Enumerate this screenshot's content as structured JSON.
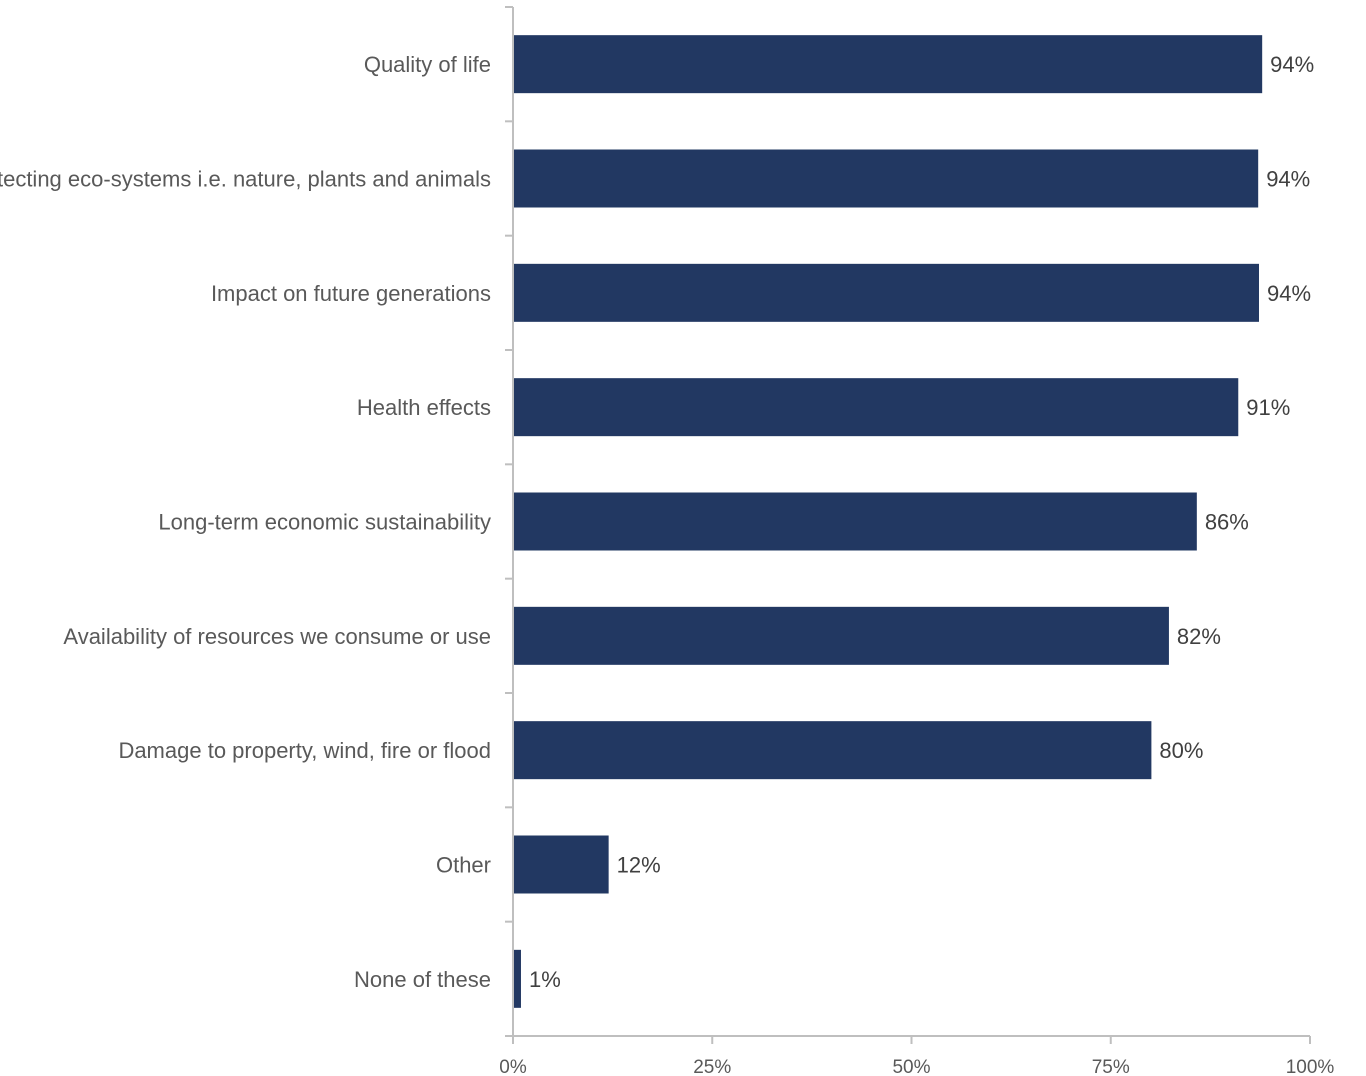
{
  "chart_data": {
    "type": "bar",
    "orientation": "horizontal",
    "title": "",
    "xlabel": "",
    "ylabel": "",
    "categories": [
      "Quality of life",
      "Protecting eco-systems i.e. nature, plants and animals",
      "Impact on future generations",
      "Health effects",
      "Long-term economic sustainability",
      "Availability of resources we consume or use",
      "Damage to property, wind, fire or flood",
      "Other",
      "None of these"
    ],
    "values": [
      94,
      93.5,
      93.6,
      91,
      85.8,
      82.3,
      80.1,
      12,
      1
    ],
    "value_labels": [
      "94%",
      "94%",
      "94%",
      "91%",
      "86%",
      "82%",
      "80%",
      "12%",
      "1%"
    ],
    "xlim": [
      0,
      100
    ],
    "ticks": [
      0,
      25,
      50,
      75,
      100
    ],
    "tick_labels": [
      "0%",
      "25%",
      "50%",
      "75%",
      "100%"
    ],
    "bar_color": "#223862",
    "grid": false,
    "legend": "none"
  }
}
